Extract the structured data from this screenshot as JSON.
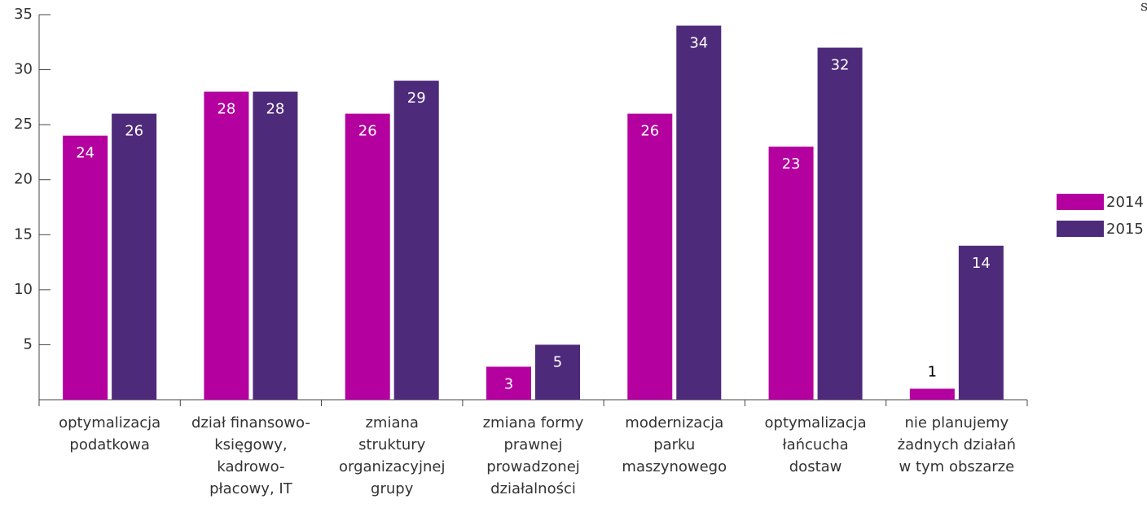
{
  "chart_data": {
    "type": "bar",
    "categories": [
      [
        "optymalizacja",
        "podatkowa"
      ],
      [
        "dział finansowo-",
        "księgowy,",
        "kadrowo-",
        "płacowy, IT"
      ],
      [
        "zmiana",
        "struktury",
        "organizacyjnej",
        "grupy"
      ],
      [
        "zmiana formy",
        "prawnej",
        "prowadzonej",
        "działalności"
      ],
      [
        "modernizacja",
        "parku",
        "maszynowego"
      ],
      [
        "optymalizacja",
        "łańcucha",
        "dostaw"
      ],
      [
        "nie planujemy",
        "żadnych działań",
        "w tym obszarze"
      ]
    ],
    "series": [
      {
        "name": "2014",
        "color": "#b4009e",
        "values": [
          24,
          28,
          26,
          3,
          26,
          23,
          1
        ]
      },
      {
        "name": "2015",
        "color": "#4e2a7a",
        "values": [
          26,
          28,
          29,
          5,
          34,
          32,
          14
        ]
      }
    ],
    "ylim": [
      0,
      35
    ],
    "yticks": [
      5,
      10,
      15,
      20,
      25,
      30,
      35
    ],
    "annotation": "s"
  }
}
